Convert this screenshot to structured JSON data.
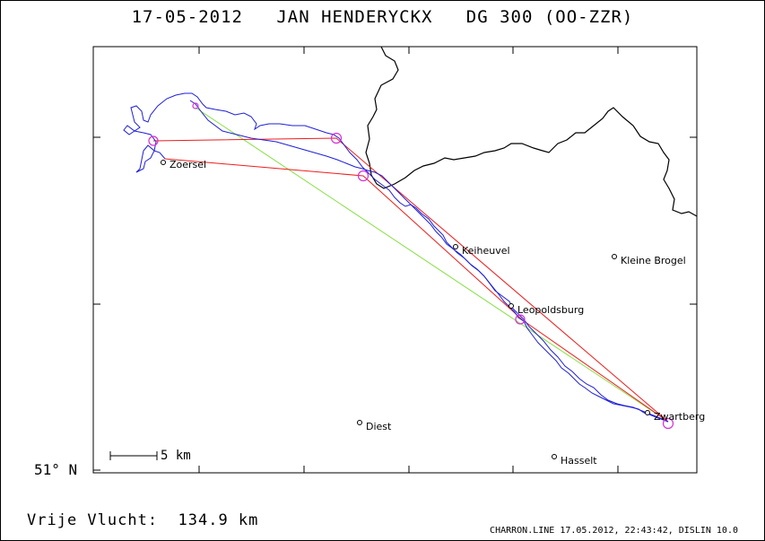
{
  "title": "17-05-2012   JAN HENDERYCKX   DG 300 (OO-ZZR)",
  "footer": {
    "distance_label": "Vrije Vlucht:  134.9 km",
    "credits": "CHARRON.LINE 17.05.2012, 22:43:42, DISLIN 10.0"
  },
  "map": {
    "latitude_label": "51° N",
    "scale_label": "5 km",
    "towns": {
      "zoersel": "Zoersel",
      "heusden": "Keiheuvel",
      "kleine_brogel": "Kleine Brogel",
      "leopoldsburg": "Leopoldsburg",
      "zwartberg": "Zwartberg",
      "diest": "Diest",
      "hasselt": "Hasselt"
    },
    "colors": {
      "track": "#1f1fd8",
      "task_line": "#ee1c1c",
      "free_flight_line": "#86e045",
      "turnpoint": "#d62fd6",
      "border": "#000000"
    }
  }
}
